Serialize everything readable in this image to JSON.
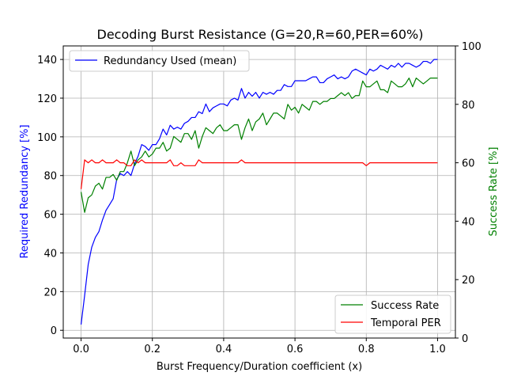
{
  "chart_data": {
    "type": "line",
    "title": "Decoding Burst Resistance (G=20,R=60,PER=60%)",
    "xlabel": "Burst Frequency/Duration coefficient (x)",
    "ylabel_left": "Required Redundancy [%]",
    "ylabel_right": "Success Rate [%]",
    "xlim": [
      -0.05,
      1.05
    ],
    "ylim_left": [
      -4,
      147
    ],
    "ylim_right": [
      0,
      100
    ],
    "xticks": [
      "0.0",
      "0.2",
      "0.4",
      "0.6",
      "0.8",
      "1.0"
    ],
    "yticks_left": [
      "0",
      "20",
      "40",
      "60",
      "80",
      "100",
      "120",
      "140"
    ],
    "yticks_right": [
      "0",
      "20",
      "40",
      "60",
      "80",
      "100"
    ],
    "grid": true,
    "colors": {
      "redundancy": "#0000ff",
      "success": "#008000",
      "per": "#ff0000"
    },
    "legends": [
      {
        "placement": "upper-left",
        "entries": [
          "Redundancy Used (mean)"
        ]
      },
      {
        "placement": "lower-right",
        "entries": [
          "Success Rate",
          "Temporal PER"
        ]
      }
    ],
    "x": [
      0.0,
      0.01,
      0.02,
      0.03,
      0.04,
      0.05,
      0.06,
      0.07,
      0.08,
      0.09,
      0.1,
      0.11,
      0.12,
      0.13,
      0.14,
      0.15,
      0.16,
      0.17,
      0.18,
      0.19,
      0.2,
      0.21,
      0.22,
      0.23,
      0.24,
      0.25,
      0.26,
      0.27,
      0.28,
      0.29,
      0.3,
      0.31,
      0.32,
      0.33,
      0.34,
      0.35,
      0.36,
      0.37,
      0.38,
      0.39,
      0.4,
      0.41,
      0.42,
      0.43,
      0.44,
      0.45,
      0.46,
      0.47,
      0.48,
      0.49,
      0.5,
      0.51,
      0.52,
      0.53,
      0.54,
      0.55,
      0.56,
      0.57,
      0.58,
      0.59,
      0.6,
      0.61,
      0.62,
      0.63,
      0.64,
      0.65,
      0.66,
      0.67,
      0.68,
      0.69,
      0.7,
      0.71,
      0.72,
      0.73,
      0.74,
      0.75,
      0.76,
      0.77,
      0.78,
      0.79,
      0.8,
      0.81,
      0.82,
      0.83,
      0.84,
      0.85,
      0.86,
      0.87,
      0.88,
      0.89,
      0.9,
      0.91,
      0.92,
      0.93,
      0.94,
      0.95,
      0.96,
      0.97,
      0.98,
      0.99,
      1.0
    ],
    "series": [
      {
        "name": "Redundancy Used (mean)",
        "axis": "left",
        "values": [
          3,
          18,
          34,
          43,
          48,
          51,
          57,
          62,
          65,
          68,
          78,
          81,
          80,
          82,
          80,
          86,
          90,
          96,
          95,
          93,
          96,
          96,
          99,
          104,
          101,
          106,
          104,
          105,
          104,
          107,
          108,
          110,
          110,
          113,
          112,
          117,
          113,
          115,
          116,
          117,
          117,
          116,
          119,
          120,
          119,
          125,
          120,
          123,
          121,
          123,
          120,
          123,
          122,
          123,
          122,
          124,
          124,
          127,
          126,
          126,
          129,
          129,
          129,
          129,
          130,
          131,
          131,
          128,
          128,
          130,
          131,
          132,
          130,
          131,
          130,
          131,
          134,
          135,
          134,
          133,
          132,
          135,
          134,
          135,
          137,
          136,
          135,
          137,
          136,
          138,
          136,
          138,
          138,
          137,
          136,
          137,
          139,
          139,
          138,
          140,
          140
        ]
      },
      {
        "name": "Success Rate",
        "axis": "right",
        "values": [
          50,
          43,
          48,
          49,
          52,
          53,
          51,
          55,
          55,
          56,
          54,
          57,
          57,
          60,
          64,
          59,
          61,
          62,
          64,
          62,
          63,
          65,
          65,
          67,
          64,
          65,
          69,
          68,
          67,
          70,
          70,
          68,
          71,
          65,
          69,
          72,
          71,
          70,
          72,
          73,
          71,
          71,
          72,
          73,
          73,
          68,
          72,
          75,
          71,
          74,
          75,
          77,
          73,
          75,
          77,
          77,
          76,
          75,
          80,
          78,
          79,
          77,
          80,
          79,
          78,
          81,
          81,
          80,
          81,
          81,
          82,
          82,
          83,
          84,
          83,
          84,
          82,
          83,
          83,
          88,
          86,
          86,
          87,
          88,
          85,
          85,
          84,
          88,
          87,
          86,
          86,
          87,
          89,
          86,
          89,
          88,
          87,
          88,
          89,
          89,
          89
        ]
      },
      {
        "name": "Temporal PER",
        "axis": "right",
        "values": [
          51,
          61,
          60,
          61,
          60,
          60,
          61,
          60,
          60,
          60,
          61,
          60,
          60,
          59,
          59,
          61,
          60,
          61,
          60,
          60,
          60,
          60,
          60,
          60,
          60,
          61,
          59,
          59,
          60,
          59,
          59,
          59,
          59,
          61,
          60,
          60,
          60,
          60,
          60,
          60,
          60,
          60,
          60,
          60,
          60,
          61,
          60,
          60,
          60,
          60,
          60,
          60,
          60,
          60,
          60,
          60,
          60,
          60,
          60,
          60,
          60,
          60,
          60,
          60,
          60,
          60,
          60,
          60,
          60,
          60,
          60,
          60,
          60,
          60,
          60,
          60,
          60,
          60,
          60,
          60,
          59,
          60,
          60,
          60,
          60,
          60,
          60,
          60,
          60,
          60,
          60,
          60,
          60,
          60,
          60,
          60,
          60,
          60,
          60,
          60,
          60
        ]
      }
    ]
  }
}
